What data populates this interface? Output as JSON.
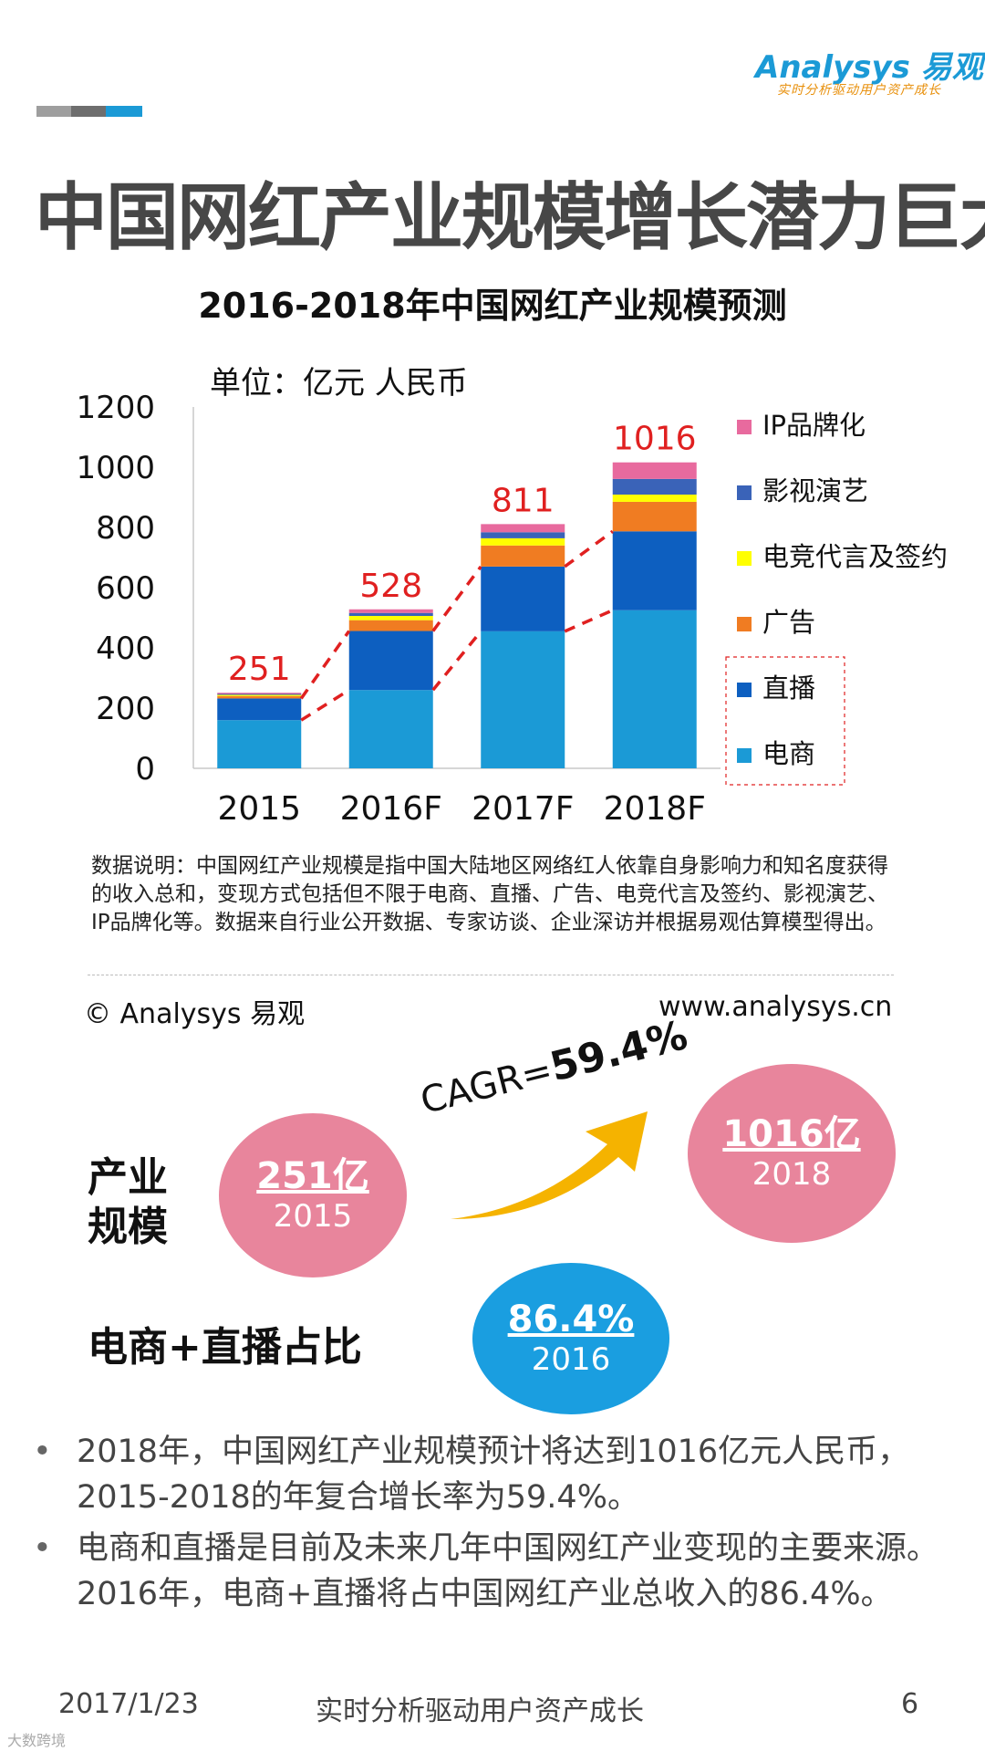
{
  "header": {
    "logo_word": "Analysys 易观",
    "logo_tagline": "实时分析驱动用户资产成长",
    "accent_colors": [
      "#9e9e9e",
      "#6e6e6e",
      "#1b9ad6"
    ]
  },
  "page": {
    "title": "中国网红产业规模增长潜力巨大"
  },
  "chart": {
    "unit_label": "单位：亿元 人民币",
    "note": "数据说明：中国网红产业规模是指中国大陆地区网络红人依靠自身影响力和知名度获得的收入总和，变现方式包括但不限于电商、直播、广告、电竞代言及签约、影视演艺、IP品牌化等。数据来自行业公开数据、专家访谈、企业深访并根据易观估算模型得出。",
    "copyright": "© Analysys 易观",
    "website": "www.analysys.cn"
  },
  "chart_data": {
    "type": "bar",
    "stacked": true,
    "title": "2016-2018年中国网红产业规模预测",
    "categories": [
      "2015",
      "2016F",
      "2017F",
      "2018F"
    ],
    "ylim": [
      0,
      1200
    ],
    "yticks": [
      0,
      200,
      400,
      600,
      800,
      1000,
      1200
    ],
    "totals": [
      251,
      528,
      811,
      1016
    ],
    "series": [
      {
        "name": "电商",
        "color": "#1b9ad6",
        "values": [
          160,
          260,
          455,
          525
        ]
      },
      {
        "name": "直播",
        "color": "#0d5fc0",
        "values": [
          72,
          196,
          215,
          262
        ]
      },
      {
        "name": "广告",
        "color": "#f07c22",
        "values": [
          8,
          36,
          70,
          98
        ]
      },
      {
        "name": "电竞代言及签约",
        "color": "#ffff00",
        "values": [
          4,
          14,
          24,
          24
        ]
      },
      {
        "name": "影视演艺",
        "color": "#3a63b8",
        "values": [
          3,
          10,
          20,
          52
        ]
      },
      {
        "name": "IP品牌化",
        "color": "#e86a9e",
        "values": [
          4,
          12,
          27,
          55
        ]
      }
    ],
    "legend_order": [
      "IP品牌化",
      "影视演艺",
      "电竞代言及签约",
      "广告",
      "直播",
      "电商"
    ],
    "total_label_color": "#e02020",
    "trend_color": "#e02020"
  },
  "summary": {
    "scale_label": "产业\n规模",
    "share_label": "电商+直播占比",
    "c2015": {
      "value": "251亿",
      "year": "2015"
    },
    "c2018": {
      "value": "1016亿",
      "year": "2018"
    },
    "c2016": {
      "value": "86.4%",
      "year": "2016"
    },
    "cagr_prefix": "CAGR=",
    "cagr_value": "59.4%",
    "arrow_color": "#f5b300"
  },
  "bullets": [
    "2018年，中国网红产业规模预计将达到1016亿元人民币，2015-2018的年复合增长率为59.4%。",
    "电商和直播是目前及未来几年中国网红产业变现的主要来源。2016年，电商+直播将占中国网红产业总收入的86.4%。"
  ],
  "footer": {
    "date": "2017/1/23",
    "slogan": "实时分析驱动用户资产成长",
    "page_num": "6",
    "corner_mark": "大数跨境"
  }
}
